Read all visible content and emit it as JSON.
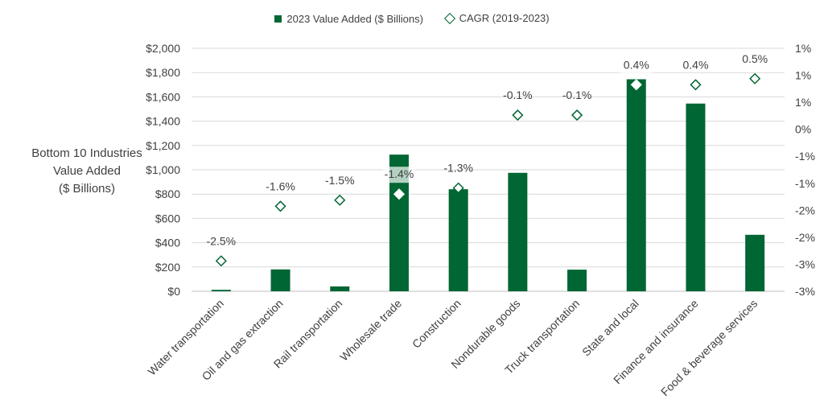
{
  "colors": {
    "bar": "#006633",
    "marker": "#006633",
    "grid": "#d9d9d9"
  },
  "legend": {
    "bar_label": "2023 Value Added ($ Billions)",
    "marker_label": "CAGR (2019-2023)"
  },
  "yaxis_label": [
    "Bottom 10 Industries",
    "Value Added",
    "($ Billions)"
  ],
  "chart_data": {
    "type": "bar",
    "categories": [
      "Water transportation",
      "Oil and gas extraction",
      "Rail transportation",
      "Wholesale trade",
      "Construction",
      "Nondurable goods",
      "Truck transportation",
      "State and local",
      "Finance and insurance",
      "Food & beverage services"
    ],
    "series": [
      {
        "name": "2023 Value Added ($ Billions)",
        "type": "bar",
        "axis": "left",
        "values": [
          12,
          180,
          40,
          1125,
          840,
          975,
          178,
          1745,
          1545,
          465
        ]
      },
      {
        "name": "CAGR (2019-2023)",
        "type": "scatter",
        "axis": "right",
        "values": [
          -2.5,
          -1.6,
          -1.5,
          -1.4,
          -1.3,
          -0.1,
          -0.1,
          0.4,
          0.4,
          0.5
        ]
      }
    ],
    "data_labels": [
      "-2.5%",
      "-1.6%",
      "-1.5%",
      "-1.4%",
      "-1.3%",
      "-0.1%",
      "-0.1%",
      "0.4%",
      "0.4%",
      "0.5%"
    ],
    "left_axis": {
      "ylim": [
        0,
        2000
      ],
      "ticks": [
        "$0",
        "$200",
        "$400",
        "$600",
        "$800",
        "$1,000",
        "$1,200",
        "$1,400",
        "$1,600",
        "$1,800",
        "$2,000"
      ]
    },
    "right_axis": {
      "ticks": [
        "-3%",
        "-3%",
        "-2%",
        "-2%",
        "-1%",
        "-1%",
        "0%",
        "1%",
        "1%",
        "1%"
      ]
    },
    "grid": true,
    "legend_position": "top"
  }
}
